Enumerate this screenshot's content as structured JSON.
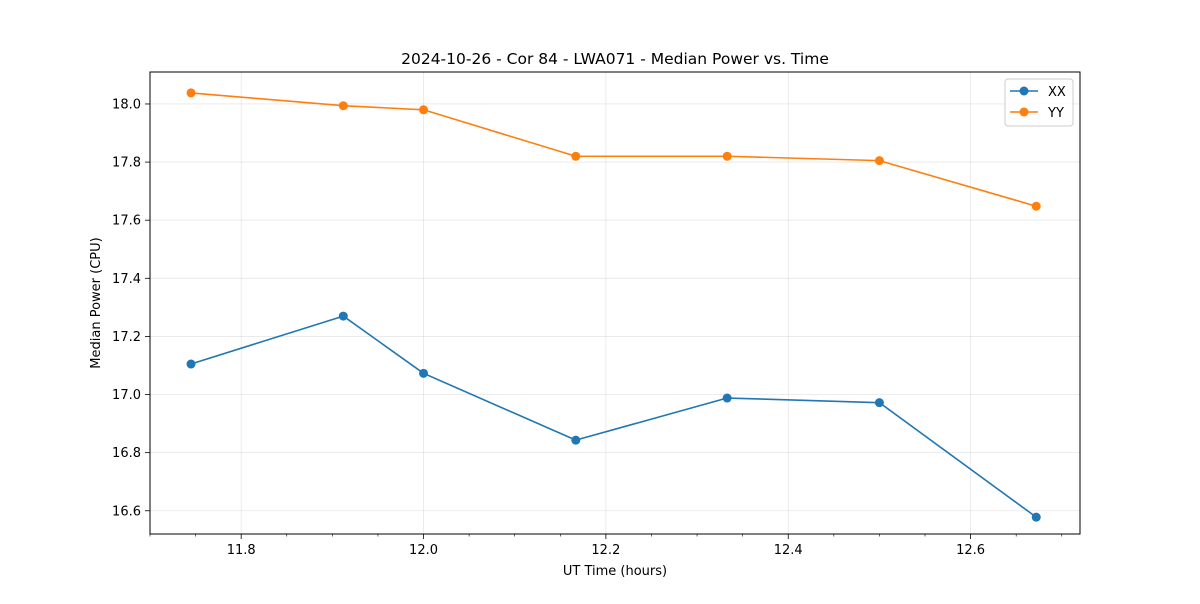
{
  "chart_data": {
    "type": "line",
    "title": "2024-10-26 - Cor 84 - LWA071 - Median Power vs. Time",
    "xlabel": "UT Time (hours)",
    "ylabel": "Median Power (CPU)",
    "xlim": [
      11.7,
      12.72
    ],
    "ylim": [
      16.52,
      18.11
    ],
    "grid": true,
    "legend_position": "top-right",
    "x": [
      11.745,
      11.912,
      12.0,
      12.167,
      12.333,
      12.5,
      12.672
    ],
    "x_ticks": [
      11.8,
      12.0,
      12.2,
      12.4,
      12.6
    ],
    "x_tick_labels": [
      "11.8",
      "12.0",
      "12.2",
      "12.4",
      "12.6"
    ],
    "y_ticks": [
      16.6,
      16.8,
      17.0,
      17.2,
      17.4,
      17.6,
      17.8,
      18.0
    ],
    "y_tick_labels": [
      "16.6",
      "16.8",
      "17.0",
      "17.2",
      "17.4",
      "17.6",
      "17.8",
      "18.0"
    ],
    "series": [
      {
        "name": "XX",
        "color": "#1f77b4",
        "values": [
          17.105,
          17.27,
          17.073,
          16.843,
          16.988,
          16.972,
          16.578
        ]
      },
      {
        "name": "YY",
        "color": "#ff7f0e",
        "values": [
          18.038,
          17.994,
          17.98,
          17.82,
          17.82,
          17.805,
          17.648
        ]
      }
    ]
  }
}
